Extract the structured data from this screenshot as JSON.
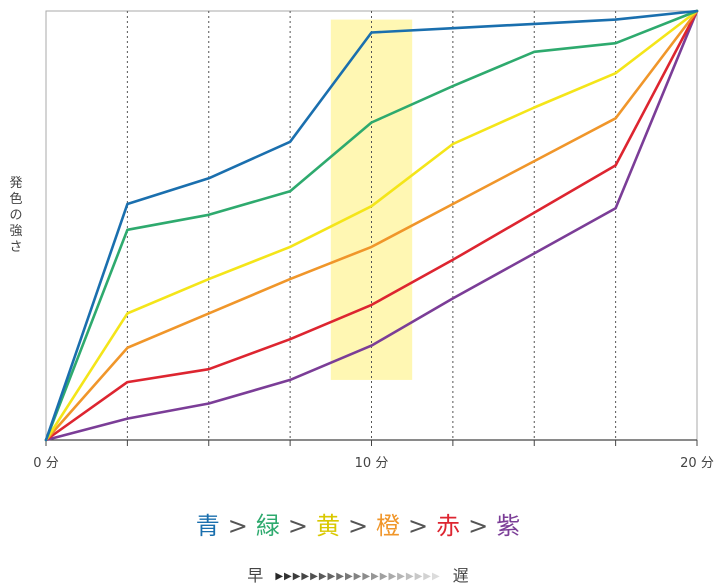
{
  "chart_data": {
    "type": "line",
    "ylabel": "発色の強さ",
    "xlim": [
      0,
      20
    ],
    "ylim": [
      0,
      100
    ],
    "x": [
      0,
      2.5,
      5,
      7.5,
      10,
      12.5,
      15,
      17.5,
      20
    ],
    "x_ticks": [
      {
        "value": 0,
        "label": "0 分"
      },
      {
        "value": 10,
        "label": "10 分"
      },
      {
        "value": 20,
        "label": "20 分"
      }
    ],
    "gridlines_x": [
      2.5,
      5,
      7.5,
      10,
      12.5,
      15,
      17.5
    ],
    "highlight": {
      "x0": 8.75,
      "x1": 11.25,
      "y0": 14,
      "y1": 98,
      "color": "#fff7b3"
    },
    "series": [
      {
        "name": "青",
        "color": "#1a6fae",
        "values": [
          0,
          55,
          61,
          69.5,
          95,
          96,
          97,
          98,
          100
        ]
      },
      {
        "name": "緑",
        "color": "#2eaa6e",
        "values": [
          0,
          49,
          52.5,
          58,
          74,
          82.5,
          90.5,
          92.5,
          100
        ]
      },
      {
        "name": "黄",
        "color": "#f4e519",
        "values": [
          0,
          29.5,
          37.5,
          45,
          54.5,
          69,
          77.5,
          85.5,
          100
        ]
      },
      {
        "name": "橙",
        "color": "#f0962a",
        "values": [
          0,
          21.5,
          29.5,
          37.5,
          45,
          55,
          65,
          75,
          100
        ]
      },
      {
        "name": "赤",
        "color": "#dd2530",
        "values": [
          0,
          13.5,
          16.5,
          23.5,
          31.5,
          42,
          53,
          64,
          100
        ]
      },
      {
        "name": "紫",
        "color": "#7b3d97",
        "values": [
          0,
          5,
          8.5,
          14,
          22,
          33,
          43.5,
          54,
          100
        ]
      }
    ]
  },
  "order": {
    "items": [
      {
        "label": "青",
        "color": "#1a6fae"
      },
      {
        "label": "緑",
        "color": "#2eaa6e"
      },
      {
        "label": "黄",
        "color": "#d9c800"
      },
      {
        "label": "橙",
        "color": "#f0962a"
      },
      {
        "label": "赤",
        "color": "#dd2530"
      },
      {
        "label": "紫",
        "color": "#7b3d97"
      }
    ],
    "separator": ">"
  },
  "speed": {
    "fast": "早",
    "slow": "遅",
    "arrows": "▶▶▶▶▶▶▶▶▶▶▶▶▶▶▶▶▶▶▶"
  }
}
